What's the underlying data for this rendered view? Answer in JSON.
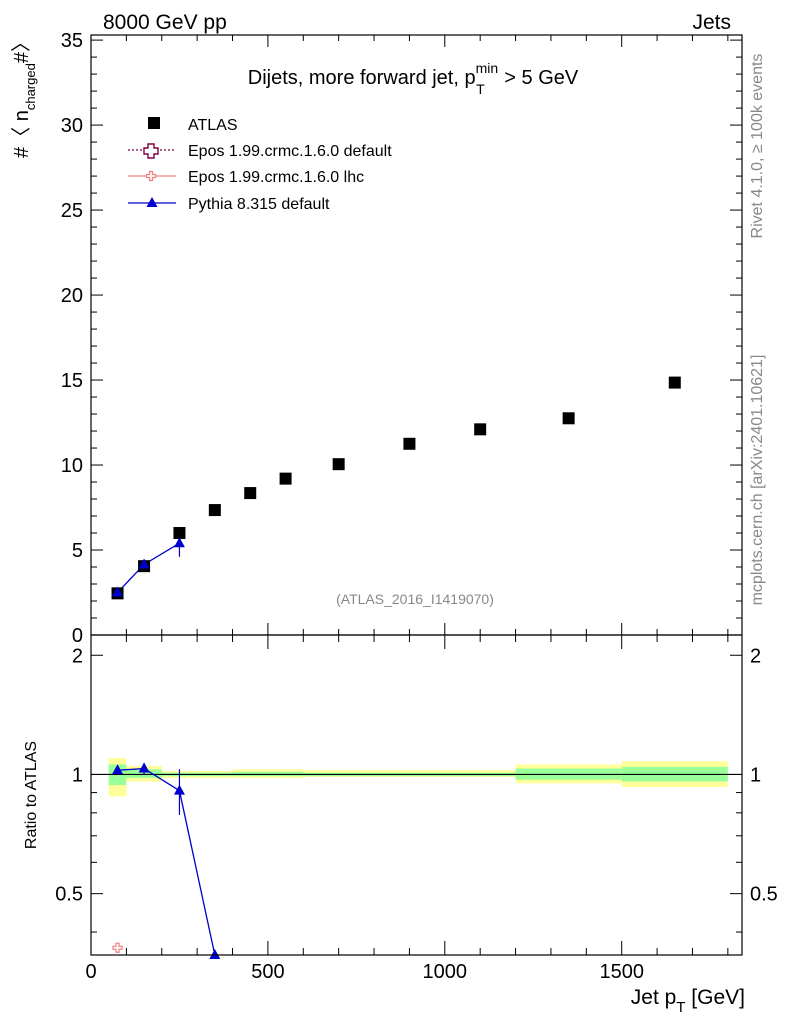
{
  "header": {
    "left": "8000 GeV pp",
    "right": "Jets"
  },
  "side_text": {
    "rivet": "Rivet 4.1.0, ≥ 100k events",
    "mcplots": "mcplots.cern.ch [arXiv:2401.10621]"
  },
  "chart_data": [
    {
      "type": "scatter",
      "title_main": "Dijets, more forward jet, p",
      "title_sup": "min",
      "title_sub": "T",
      "title_tail": " > 5 GeV",
      "ylabel_pre": "#〈 n",
      "ylabel_sub": "charged",
      "ylabel_post": "#〉",
      "watermark": "(ATLAS_2016_I1419070)",
      "xlim": [
        0,
        1840
      ],
      "ylim": [
        0,
        35.3
      ],
      "yticks": [
        0,
        5,
        10,
        15,
        20,
        25,
        30,
        35
      ],
      "ytick_labels": [
        "0",
        "5",
        "10",
        "15",
        "20",
        "25",
        "30",
        "35"
      ],
      "legend": [
        {
          "key": "atlas",
          "label": "ATLAS"
        },
        {
          "key": "epos_default",
          "label": "Epos 1.99.crmc.1.6.0 default"
        },
        {
          "key": "epos_lhc",
          "label": "Epos 1.99.crmc.1.6.0 lhc"
        },
        {
          "key": "pythia",
          "label": "Pythia 8.315 default"
        }
      ],
      "series": [
        {
          "name": "ATLAS",
          "key": "atlas",
          "color": "#000000",
          "x": [
            75,
            150,
            250,
            350,
            450,
            550,
            700,
            900,
            1100,
            1350,
            1650
          ],
          "y": [
            2.45,
            4.05,
            6.0,
            7.35,
            8.35,
            9.2,
            10.05,
            11.25,
            12.1,
            12.75,
            14.85
          ]
        },
        {
          "name": "Pythia 8.315 default",
          "key": "pythia",
          "color": "#0000cc",
          "x": [
            75,
            150,
            250
          ],
          "y": [
            2.5,
            4.15,
            5.4
          ],
          "yerr": [
            0.05,
            0.2,
            0.8
          ]
        }
      ]
    },
    {
      "type": "scatter",
      "ylabel": "Ratio to ATLAS",
      "xlabel_pre": "Jet p",
      "xlabel_sub": "T",
      "xlabel_post": " [GeV]",
      "xlim": [
        0,
        1840
      ],
      "ylim": [
        0.35,
        2.25
      ],
      "yticks": [
        0.5,
        1,
        2
      ],
      "ytick_labels": [
        "0.5",
        "1",
        "2"
      ],
      "xticks": [
        0,
        500,
        1000,
        1500
      ],
      "xtick_labels": [
        "0",
        "500",
        "1000",
        "1500"
      ],
      "bands": [
        {
          "x0": 50,
          "x1": 100,
          "yellow": [
            0.88,
            1.1
          ],
          "green": [
            0.94,
            1.06
          ]
        },
        {
          "x0": 100,
          "x1": 200,
          "yellow": [
            0.96,
            1.05
          ],
          "green": [
            0.98,
            1.03
          ]
        },
        {
          "x0": 200,
          "x1": 400,
          "yellow": [
            0.98,
            1.02
          ],
          "green": [
            0.99,
            1.01
          ]
        },
        {
          "x0": 400,
          "x1": 600,
          "yellow": [
            0.98,
            1.03
          ],
          "green": [
            0.99,
            1.015
          ]
        },
        {
          "x0": 600,
          "x1": 800,
          "yellow": [
            0.985,
            1.025
          ],
          "green": [
            0.99,
            1.01
          ]
        },
        {
          "x0": 800,
          "x1": 1000,
          "yellow": [
            0.985,
            1.025
          ],
          "green": [
            0.99,
            1.01
          ]
        },
        {
          "x0": 1000,
          "x1": 1200,
          "yellow": [
            0.985,
            1.025
          ],
          "green": [
            0.99,
            1.01
          ]
        },
        {
          "x0": 1200,
          "x1": 1500,
          "yellow": [
            0.95,
            1.06
          ],
          "green": [
            0.97,
            1.035
          ]
        },
        {
          "x0": 1500,
          "x1": 1800,
          "yellow": [
            0.93,
            1.08
          ],
          "green": [
            0.96,
            1.045
          ]
        }
      ],
      "series": [
        {
          "name": "Pythia 8.315 default",
          "key": "pythia",
          "color": "#0000cc",
          "x": [
            75,
            150,
            250,
            350
          ],
          "y": [
            1.025,
            1.035,
            0.91,
            0.34
          ],
          "yerr": [
            0.01,
            0.035,
            0.12,
            0
          ]
        },
        {
          "name": "Epos 1.99.crmc.1.6.0 lhc",
          "key": "epos_lhc",
          "color": "#f08080",
          "x": [
            75
          ],
          "y": [
            0.365
          ]
        }
      ]
    }
  ]
}
